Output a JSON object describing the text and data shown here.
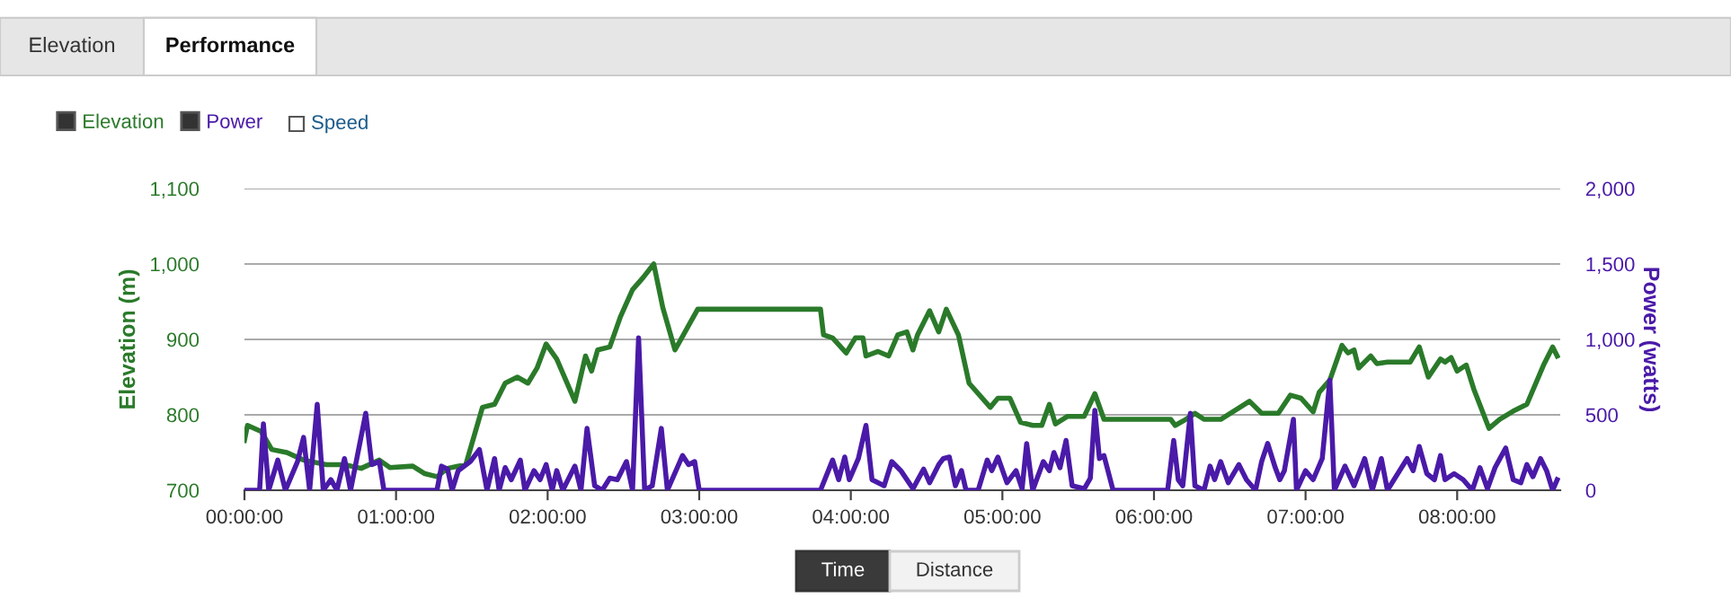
{
  "chart_data": {
    "type": "line",
    "ylabel": "Elevation (m)",
    "y2label": "Power (watts)",
    "annotations": [
      "Elevation",
      "Performance",
      "Speed",
      "Time",
      "Distance"
    ],
    "xlim": [
      0,
      8.68
    ],
    "xticks": [
      {
        "value": 0,
        "label": "00:00:00"
      },
      {
        "value": 1,
        "label": "01:00:00"
      },
      {
        "value": 2,
        "label": "02:00:00"
      },
      {
        "value": 3,
        "label": "03:00:00"
      },
      {
        "value": 4,
        "label": "04:00:00"
      },
      {
        "value": 5,
        "label": "05:00:00"
      },
      {
        "value": 6,
        "label": "06:00:00"
      },
      {
        "value": 7,
        "label": "07:00:00"
      },
      {
        "value": 8,
        "label": "08:00:00"
      }
    ],
    "ylim": [
      700,
      1100
    ],
    "yticks": [
      {
        "value": 700,
        "label": "700"
      },
      {
        "value": 800,
        "label": "800"
      },
      {
        "value": 900,
        "label": "900"
      },
      {
        "value": 1000,
        "label": "1,000"
      },
      {
        "value": 1100,
        "label": "1,100"
      }
    ],
    "y2lim": [
      0,
      2000
    ],
    "y2ticks": [
      {
        "value": 0,
        "label": "0"
      },
      {
        "value": 500,
        "label": "500"
      },
      {
        "value": 1000,
        "label": "1,000"
      },
      {
        "value": 1500,
        "label": "1,500"
      },
      {
        "value": 2000,
        "label": "2,000"
      }
    ],
    "grid": "y",
    "legend": "top left",
    "series": [
      {
        "name": "Elevation",
        "color": "#2a7a2a",
        "x": [
          0,
          0.02,
          0.11,
          0.18,
          0.28,
          0.39,
          0.54,
          0.66,
          0.77,
          0.89,
          0.96,
          1.11,
          1.19,
          1.27,
          1.34,
          1.46,
          1.57,
          1.65,
          1.72,
          1.8,
          1.87,
          1.93,
          1.99,
          2.06,
          2.18,
          2.25,
          2.29,
          2.33,
          2.41,
          2.48,
          2.56,
          2.63,
          2.7,
          2.76,
          2.84,
          2.99,
          3.8,
          3.82,
          3.88,
          3.97,
          4.03,
          4.08,
          4.1,
          4.18,
          4.25,
          4.31,
          4.37,
          4.41,
          4.44,
          4.52,
          4.58,
          4.63,
          4.71,
          4.78,
          4.92,
          4.97,
          5.05,
          5.12,
          5.2,
          5.26,
          5.31,
          5.35,
          5.43,
          5.54,
          5.61,
          5.67,
          6.11,
          6.14,
          6.21,
          6.27,
          6.33,
          6.44,
          6.52,
          6.63,
          6.71,
          6.82,
          6.9,
          6.97,
          7.05,
          7.09,
          7.16,
          7.24,
          7.28,
          7.32,
          7.35,
          7.43,
          7.47,
          7.54,
          7.69,
          7.75,
          7.81,
          7.89,
          7.92,
          7.96,
          8.0,
          8.06,
          8.11,
          8.21,
          8.28,
          8.38,
          8.46,
          8.57,
          8.63,
          8.66
        ],
        "values": [
          766,
          786,
          778,
          754,
          750,
          740,
          734,
          734,
          729,
          740,
          730,
          732,
          722,
          718,
          729,
          734,
          810,
          814,
          842,
          850,
          842,
          862,
          894,
          874,
          818,
          878,
          858,
          886,
          890,
          930,
          966,
          982,
          1000,
          942,
          886,
          940,
          940,
          906,
          902,
          882,
          902,
          902,
          878,
          884,
          878,
          906,
          910,
          886,
          906,
          938,
          910,
          940,
          906,
          842,
          810,
          822,
          822,
          790,
          786,
          786,
          814,
          788,
          798,
          798,
          828,
          794,
          794,
          786,
          794,
          802,
          794,
          794,
          804,
          818,
          802,
          802,
          826,
          822,
          804,
          830,
          846,
          892,
          882,
          886,
          862,
          878,
          868,
          870,
          870,
          890,
          850,
          874,
          870,
          876,
          858,
          866,
          834,
          782,
          794,
          806,
          814,
          866,
          890,
          878
        ]
      },
      {
        "name": "Power",
        "color": "#4a1aa8",
        "axis": "y2",
        "x": [
          0,
          0.1,
          0.125,
          0.16,
          0.22,
          0.27,
          0.35,
          0.39,
          0.43,
          0.48,
          0.52,
          0.57,
          0.61,
          0.66,
          0.7,
          0.8,
          0.84,
          0.89,
          0.92,
          1.27,
          1.3,
          1.34,
          1.37,
          1.41,
          1.49,
          1.55,
          1.6,
          1.65,
          1.68,
          1.72,
          1.76,
          1.82,
          1.85,
          1.91,
          1.95,
          1.99,
          2.03,
          2.06,
          2.1,
          2.18,
          2.22,
          2.26,
          2.31,
          2.36,
          2.41,
          2.46,
          2.52,
          2.56,
          2.6,
          2.64,
          2.69,
          2.75,
          2.79,
          2.89,
          2.93,
          2.97,
          3.0,
          3.8,
          3.88,
          3.92,
          3.96,
          3.99,
          4.05,
          4.1,
          4.14,
          4.22,
          4.27,
          4.33,
          4.41,
          4.48,
          4.52,
          4.58,
          4.61,
          4.65,
          4.69,
          4.73,
          4.76,
          4.84,
          4.9,
          4.93,
          4.97,
          5.03,
          5.09,
          5.13,
          5.16,
          5.2,
          5.27,
          5.31,
          5.34,
          5.38,
          5.42,
          5.46,
          5.54,
          5.58,
          5.61,
          5.64,
          5.67,
          5.73,
          6.09,
          6.13,
          6.16,
          6.19,
          6.24,
          6.27,
          6.33,
          6.37,
          6.4,
          6.44,
          6.49,
          6.56,
          6.61,
          6.67,
          6.71,
          6.75,
          6.8,
          6.83,
          6.86,
          6.92,
          6.94,
          7.0,
          7.05,
          7.11,
          7.16,
          7.19,
          7.26,
          7.32,
          7.39,
          7.44,
          7.5,
          7.54,
          7.67,
          7.71,
          7.75,
          7.8,
          7.85,
          7.89,
          7.92,
          7.98,
          8.04,
          8.1,
          8.15,
          8.2,
          8.25,
          8.32,
          8.37,
          8.42,
          8.46,
          8.5,
          8.55,
          8.59,
          8.63,
          8.66
        ],
        "values": [
          0,
          0,
          440,
          0,
          200,
          0,
          190,
          350,
          0,
          570,
          0,
          70,
          0,
          210,
          0,
          510,
          170,
          190,
          0,
          0,
          160,
          140,
          0,
          130,
          190,
          270,
          0,
          210,
          0,
          150,
          70,
          200,
          0,
          130,
          70,
          170,
          0,
          130,
          0,
          160,
          0,
          410,
          30,
          0,
          80,
          70,
          190,
          0,
          1010,
          0,
          30,
          410,
          0,
          230,
          170,
          190,
          0,
          0,
          200,
          70,
          220,
          70,
          210,
          430,
          70,
          30,
          190,
          130,
          10,
          140,
          50,
          170,
          210,
          220,
          30,
          130,
          0,
          0,
          200,
          130,
          220,
          50,
          130,
          10,
          310,
          0,
          190,
          130,
          250,
          150,
          330,
          30,
          10,
          80,
          530,
          210,
          230,
          0,
          0,
          330,
          70,
          30,
          510,
          30,
          0,
          160,
          70,
          190,
          50,
          170,
          70,
          0,
          190,
          310,
          150,
          70,
          130,
          470,
          0,
          130,
          70,
          210,
          730,
          0,
          160,
          30,
          210,
          0,
          210,
          0,
          210,
          130,
          290,
          110,
          70,
          230,
          70,
          110,
          70,
          0,
          150,
          10,
          150,
          280,
          70,
          50,
          170,
          90,
          210,
          130,
          0,
          70
        ]
      }
    ]
  }
}
